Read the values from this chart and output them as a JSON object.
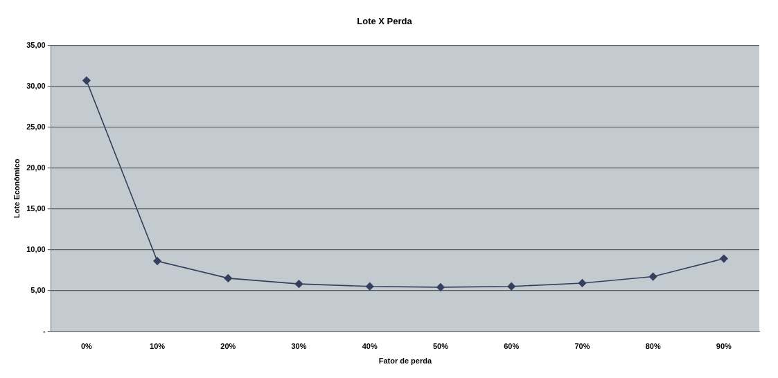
{
  "chart_data": {
    "type": "line",
    "title": "Lote X Perda",
    "xlabel": "Fator de perda",
    "ylabel": "Lote Econômico",
    "categories": [
      "0%",
      "10%",
      "20%",
      "30%",
      "40%",
      "50%",
      "60%",
      "70%",
      "80%",
      "90%"
    ],
    "series": [
      {
        "color": "#34405e",
        "values": [
          30.7,
          8.6,
          6.5,
          5.8,
          5.5,
          5.4,
          5.5,
          5.9,
          6.7,
          8.9
        ]
      }
    ],
    "ylim": [
      0,
      35
    ],
    "yticks": [
      {
        "value": 0,
        "label": "-"
      },
      {
        "value": 5,
        "label": "5,00"
      },
      {
        "value": 10,
        "label": "10,00"
      },
      {
        "value": 15,
        "label": "15,00"
      },
      {
        "value": 20,
        "label": "20,00"
      },
      {
        "value": 25,
        "label": "25,00"
      },
      {
        "value": 30,
        "label": "30,00"
      },
      {
        "value": 35,
        "label": "35,00"
      }
    ],
    "grid": "y",
    "marker": "diamond",
    "line_style": "solid",
    "legend": false
  }
}
